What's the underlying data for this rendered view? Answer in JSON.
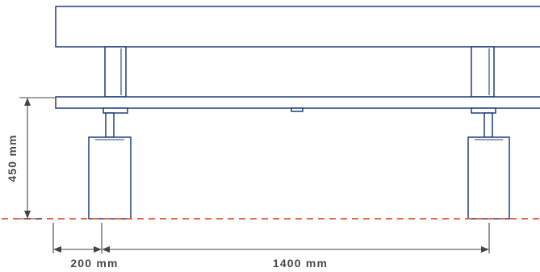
{
  "dimensions": {
    "height_label": "450 mm",
    "offset_label": "200 mm",
    "span_label": "1400 mm"
  },
  "colors": {
    "structure": "#1f3f7a",
    "ground_line": "#e06b4f",
    "dimension": "#444444"
  }
}
